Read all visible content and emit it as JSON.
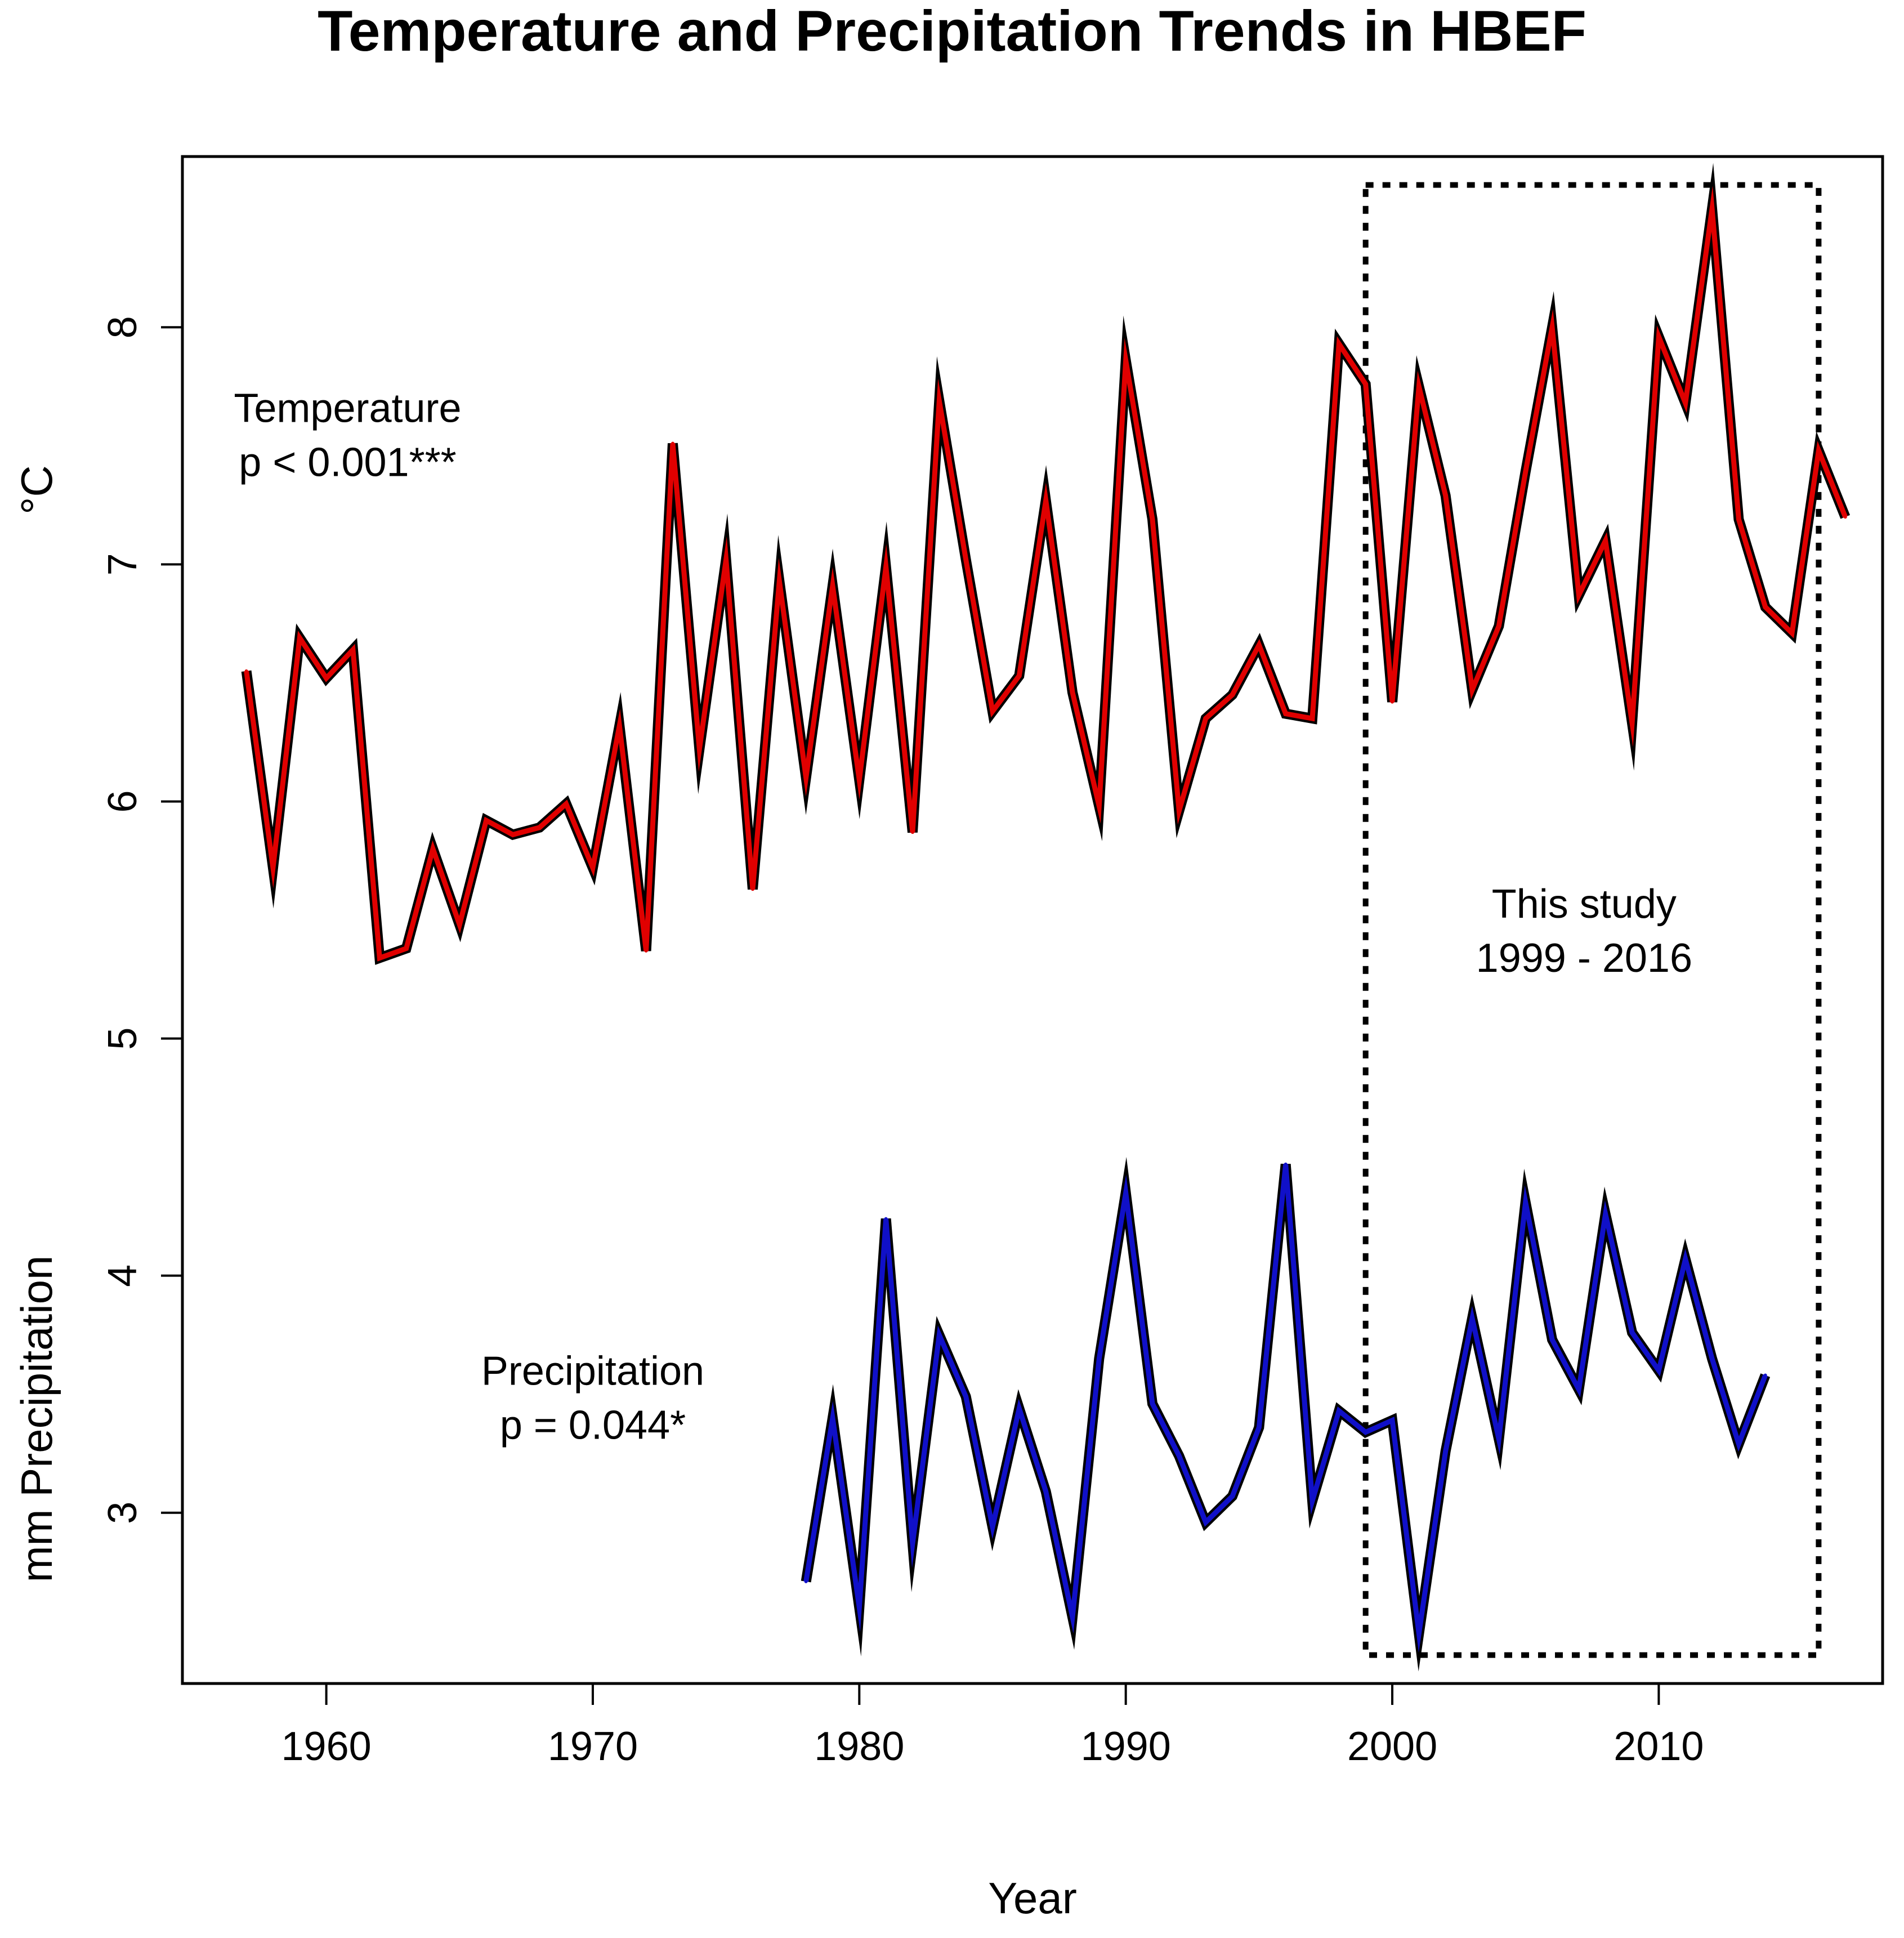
{
  "chart_data": {
    "type": "line",
    "title": "Temperature and Precipitation Trends in HBEF",
    "xlabel": "Year",
    "ylabel_top": "°C",
    "ylabel_bottom": "mm Precipitation",
    "xlim": [
      1954.6,
      2018.4
    ],
    "ylim": [
      2.28,
      8.72
    ],
    "x_ticks": [
      1960,
      1970,
      1980,
      1990,
      2000,
      2010
    ],
    "y_ticks": [
      3,
      4,
      5,
      6,
      7,
      8
    ],
    "grid": false,
    "series": [
      {
        "name": "Temperature",
        "color": "#e00000",
        "x": [
          1957,
          1958,
          1959,
          1960,
          1961,
          1962,
          1963,
          1964,
          1965,
          1966,
          1967,
          1968,
          1969,
          1970,
          1971,
          1972,
          1973,
          1974,
          1975,
          1976,
          1977,
          1978,
          1979,
          1980,
          1981,
          1982,
          1983,
          1984,
          1985,
          1986,
          1987,
          1988,
          1989,
          1990,
          1991,
          1992,
          1993,
          1994,
          1995,
          1996,
          1997,
          1998,
          1999,
          2000,
          2001,
          2002,
          2003,
          2004,
          2005,
          2006,
          2007,
          2008,
          2009,
          2010,
          2011,
          2012,
          2013,
          2014,
          2015,
          2016,
          2017
        ],
        "values": [
          6.55,
          5.72,
          6.69,
          6.52,
          6.64,
          5.34,
          5.38,
          5.8,
          5.48,
          5.92,
          5.86,
          5.89,
          5.99,
          5.72,
          6.32,
          5.37,
          7.51,
          6.22,
          7.02,
          5.63,
          6.93,
          6.1,
          6.91,
          6.09,
          6.99,
          5.87,
          7.69,
          7.02,
          6.38,
          6.53,
          7.27,
          6.46,
          5.98,
          7.86,
          7.19,
          5.96,
          6.35,
          6.45,
          6.66,
          6.37,
          6.35,
          7.93,
          7.76,
          6.42,
          7.75,
          7.29,
          6.47,
          6.74,
          7.39,
          8.0,
          6.87,
          7.1,
          6.33,
          7.96,
          7.68,
          8.5,
          7.19,
          6.82,
          6.71,
          7.48,
          7.2
        ]
      },
      {
        "name": "Precipitation",
        "color": "#1010c8",
        "x": [
          1978,
          1979,
          1980,
          1981,
          1982,
          1983,
          1984,
          1985,
          1986,
          1987,
          1988,
          1989,
          1990,
          1991,
          1992,
          1993,
          1994,
          1995,
          1996,
          1997,
          1998,
          1999,
          2000,
          2001,
          2002,
          2003,
          2004,
          2005,
          2006,
          2007,
          2008,
          2009,
          2010,
          2011,
          2012,
          2013,
          2014
        ],
        "values": [
          2.71,
          3.4,
          2.6,
          4.24,
          2.87,
          3.75,
          3.49,
          2.94,
          3.44,
          3.09,
          2.56,
          3.65,
          4.35,
          3.46,
          3.24,
          2.96,
          3.07,
          3.36,
          4.47,
          3.05,
          3.43,
          3.34,
          3.39,
          2.49,
          3.26,
          3.82,
          3.31,
          4.31,
          3.73,
          3.52,
          4.26,
          3.76,
          3.6,
          4.07,
          3.65,
          3.29,
          3.58
        ]
      }
    ],
    "annotations": [
      {
        "lines": [
          "Temperature",
          "p < 0.001***"
        ],
        "x": 1960.8,
        "y": 7.6
      },
      {
        "lines": [
          "Precipitation",
          "p = 0.044*"
        ],
        "x": 1970.0,
        "y": 3.54
      },
      {
        "lines": [
          "This study",
          "1999 - 2016"
        ],
        "x": 2007.2,
        "y": 5.51
      }
    ],
    "highlight_box": {
      "label": "This study",
      "x_range": [
        1999,
        2016
      ],
      "y_range": [
        2.4,
        8.6
      ],
      "style": "dotted"
    }
  }
}
